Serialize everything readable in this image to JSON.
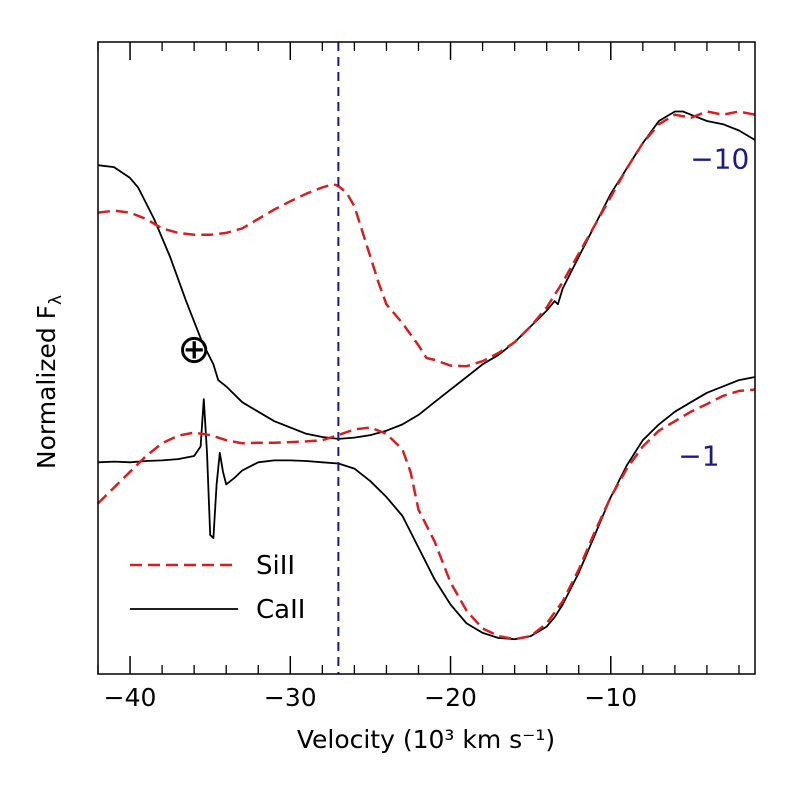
{
  "chart_data": {
    "type": "line",
    "xlabel": "Velocity (10³ km s⁻¹)",
    "ylabel": "Normalized F",
    "ylabel_sub": "λ",
    "xlim": [
      -42,
      -1
    ],
    "ylim": [
      0,
      1
    ],
    "xticks": [
      {
        "value": -40,
        "label": "−40"
      },
      {
        "value": -30,
        "label": "−30"
      },
      {
        "value": -20,
        "label": "−20"
      },
      {
        "value": -10,
        "label": "−10"
      }
    ],
    "minor_step": 2,
    "vline_x": -27,
    "epoch_labels": [
      {
        "text": "−10",
        "x": -3.2,
        "y": 0.8
      },
      {
        "text": "−1",
        "x": -4.5,
        "y": 0.33
      }
    ],
    "earth_symbol": {
      "text": "⊕",
      "x": -36,
      "y": 0.51
    },
    "legend": [
      {
        "name": "SiII",
        "label": "SiII",
        "style": "dashed",
        "color": "#d62020"
      },
      {
        "name": "CaII",
        "label": "CaII",
        "style": "solid",
        "color": "#000000"
      }
    ],
    "colors": {
      "si": "#d62020",
      "ca": "#000000",
      "vline": "#1a1a8c",
      "label": "#1a1a8c"
    },
    "series": [
      {
        "name": "CaII",
        "group": "-10",
        "style": "solid",
        "points": [
          [
            -42,
            0.805
          ],
          [
            -41,
            0.802
          ],
          [
            -40,
            0.785
          ],
          [
            -39.5,
            0.77
          ],
          [
            -38.5,
            0.72
          ],
          [
            -37.5,
            0.66
          ],
          [
            -36.5,
            0.59
          ],
          [
            -35.5,
            0.525
          ],
          [
            -35,
            0.5
          ],
          [
            -34.8,
            0.49
          ],
          [
            -34.5,
            0.465
          ],
          [
            -34,
            0.455
          ],
          [
            -33,
            0.43
          ],
          [
            -32,
            0.415
          ],
          [
            -31,
            0.4
          ],
          [
            -30,
            0.39
          ],
          [
            -29,
            0.38
          ],
          [
            -28,
            0.375
          ],
          [
            -27,
            0.372
          ],
          [
            -26,
            0.374
          ],
          [
            -25,
            0.378
          ],
          [
            -24,
            0.385
          ],
          [
            -23,
            0.395
          ],
          [
            -22,
            0.41
          ],
          [
            -21,
            0.43
          ],
          [
            -20,
            0.45
          ],
          [
            -19,
            0.47
          ],
          [
            -18,
            0.49
          ],
          [
            -17,
            0.505
          ],
          [
            -16,
            0.525
          ],
          [
            -15,
            0.55
          ],
          [
            -14,
            0.575
          ],
          [
            -13.5,
            0.59
          ],
          [
            -13.3,
            0.585
          ],
          [
            -13,
            0.61
          ],
          [
            -12,
            0.66
          ],
          [
            -11,
            0.71
          ],
          [
            -10,
            0.76
          ],
          [
            -9,
            0.8
          ],
          [
            -8,
            0.84
          ],
          [
            -7,
            0.875
          ],
          [
            -6,
            0.89
          ],
          [
            -5.5,
            0.89
          ],
          [
            -5,
            0.885
          ],
          [
            -4,
            0.875
          ],
          [
            -3,
            0.87
          ],
          [
            -2,
            0.86
          ],
          [
            -1,
            0.845
          ]
        ]
      },
      {
        "name": "SiII",
        "group": "-10",
        "style": "dashed",
        "points": [
          [
            -42,
            0.73
          ],
          [
            -41,
            0.733
          ],
          [
            -40,
            0.73
          ],
          [
            -39,
            0.72
          ],
          [
            -38,
            0.705
          ],
          [
            -37,
            0.698
          ],
          [
            -36,
            0.695
          ],
          [
            -35,
            0.695
          ],
          [
            -34,
            0.698
          ],
          [
            -33,
            0.705
          ],
          [
            -32,
            0.72
          ],
          [
            -31,
            0.735
          ],
          [
            -30,
            0.748
          ],
          [
            -29,
            0.76
          ],
          [
            -28,
            0.77
          ],
          [
            -27.3,
            0.775
          ],
          [
            -27,
            0.772
          ],
          [
            -26.5,
            0.762
          ],
          [
            -26,
            0.74
          ],
          [
            -25.5,
            0.7
          ],
          [
            -25,
            0.66
          ],
          [
            -24.5,
            0.62
          ],
          [
            -24,
            0.585
          ],
          [
            -23,
            0.555
          ],
          [
            -22,
            0.52
          ],
          [
            -21.5,
            0.5
          ],
          [
            -21,
            0.497
          ],
          [
            -20,
            0.488
          ],
          [
            -19,
            0.487
          ],
          [
            -18,
            0.495
          ],
          [
            -17,
            0.508
          ],
          [
            -16,
            0.525
          ],
          [
            -15,
            0.55
          ],
          [
            -14,
            0.58
          ],
          [
            -13,
            0.62
          ],
          [
            -12,
            0.665
          ],
          [
            -11,
            0.71
          ],
          [
            -10,
            0.755
          ],
          [
            -9,
            0.8
          ],
          [
            -8,
            0.84
          ],
          [
            -7,
            0.87
          ],
          [
            -6,
            0.885
          ],
          [
            -5,
            0.88
          ],
          [
            -4,
            0.89
          ],
          [
            -3,
            0.885
          ],
          [
            -2,
            0.89
          ],
          [
            -1,
            0.885
          ]
        ]
      },
      {
        "name": "CaII",
        "group": "-1",
        "style": "solid",
        "points": [
          [
            -42,
            0.335
          ],
          [
            -41,
            0.336
          ],
          [
            -40,
            0.335
          ],
          [
            -39,
            0.337
          ],
          [
            -38,
            0.338
          ],
          [
            -37,
            0.34
          ],
          [
            -36,
            0.345
          ],
          [
            -35.6,
            0.36
          ],
          [
            -35.4,
            0.435
          ],
          [
            -35.2,
            0.35
          ],
          [
            -35,
            0.22
          ],
          [
            -34.8,
            0.215
          ],
          [
            -34.6,
            0.3
          ],
          [
            -34.4,
            0.35
          ],
          [
            -34.2,
            0.32
          ],
          [
            -34,
            0.3
          ],
          [
            -33.5,
            0.31
          ],
          [
            -33,
            0.322
          ],
          [
            -32,
            0.335
          ],
          [
            -31,
            0.338
          ],
          [
            -30,
            0.338
          ],
          [
            -29,
            0.337
          ],
          [
            -28,
            0.335
          ],
          [
            -27,
            0.333
          ],
          [
            -26,
            0.325
          ],
          [
            -25,
            0.305
          ],
          [
            -24,
            0.28
          ],
          [
            -23,
            0.25
          ],
          [
            -22,
            0.2
          ],
          [
            -21,
            0.15
          ],
          [
            -20,
            0.11
          ],
          [
            -19,
            0.08
          ],
          [
            -18,
            0.065
          ],
          [
            -17,
            0.057
          ],
          [
            -16,
            0.055
          ],
          [
            -15,
            0.06
          ],
          [
            -14,
            0.075
          ],
          [
            -13.5,
            0.09
          ],
          [
            -13,
            0.11
          ],
          [
            -12,
            0.16
          ],
          [
            -11,
            0.22
          ],
          [
            -10,
            0.28
          ],
          [
            -9,
            0.33
          ],
          [
            -8,
            0.37
          ],
          [
            -7,
            0.395
          ],
          [
            -6,
            0.415
          ],
          [
            -5,
            0.43
          ],
          [
            -4,
            0.445
          ],
          [
            -3,
            0.455
          ],
          [
            -2,
            0.465
          ],
          [
            -1,
            0.47
          ]
        ]
      },
      {
        "name": "SiII",
        "group": "-1",
        "style": "dashed",
        "points": [
          [
            -42,
            0.27
          ],
          [
            -41,
            0.295
          ],
          [
            -40,
            0.32
          ],
          [
            -39,
            0.345
          ],
          [
            -38,
            0.365
          ],
          [
            -37,
            0.377
          ],
          [
            -36,
            0.382
          ],
          [
            -35,
            0.378
          ],
          [
            -34,
            0.37
          ],
          [
            -33,
            0.365
          ],
          [
            -32,
            0.366
          ],
          [
            -31,
            0.366
          ],
          [
            -30,
            0.367
          ],
          [
            -29,
            0.368
          ],
          [
            -28,
            0.37
          ],
          [
            -27,
            0.378
          ],
          [
            -26,
            0.387
          ],
          [
            -25,
            0.39
          ],
          [
            -24,
            0.38
          ],
          [
            -23,
            0.355
          ],
          [
            -22.5,
            0.32
          ],
          [
            -22,
            0.26
          ],
          [
            -21.5,
            0.235
          ],
          [
            -21,
            0.21
          ],
          [
            -20,
            0.145
          ],
          [
            -19,
            0.1
          ],
          [
            -18,
            0.072
          ],
          [
            -17,
            0.06
          ],
          [
            -16,
            0.055
          ],
          [
            -15,
            0.06
          ],
          [
            -14,
            0.08
          ],
          [
            -13,
            0.115
          ],
          [
            -12,
            0.165
          ],
          [
            -11,
            0.225
          ],
          [
            -10,
            0.28
          ],
          [
            -9,
            0.325
          ],
          [
            -8,
            0.36
          ],
          [
            -7,
            0.385
          ],
          [
            -6,
            0.4
          ],
          [
            -5,
            0.415
          ],
          [
            -4,
            0.427
          ],
          [
            -3,
            0.44
          ],
          [
            -2,
            0.448
          ],
          [
            -1,
            0.45
          ]
        ]
      }
    ]
  }
}
